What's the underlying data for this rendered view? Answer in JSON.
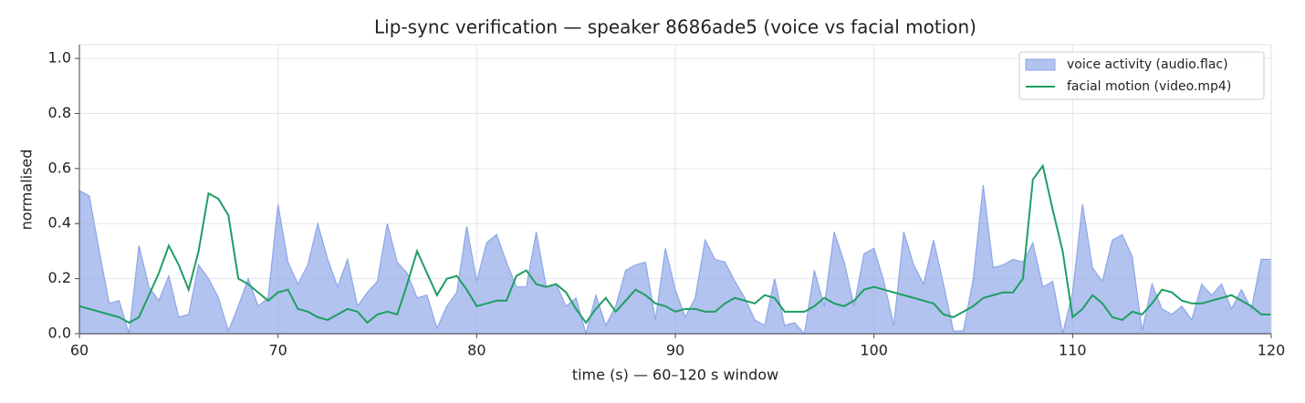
{
  "chart_data": {
    "type": "line",
    "title": "Lip-sync verification — speaker 8686ade5 (voice vs facial motion)",
    "x_label": "time (s)  — 60–120 s window",
    "y_label": "normalised",
    "xlim": [
      60,
      120
    ],
    "ylim": [
      0,
      1.05
    ],
    "xticks": [
      60,
      70,
      80,
      90,
      100,
      110,
      120
    ],
    "yticks": [
      {
        "value": 0,
        "label": "0.0"
      },
      0.2,
      0.4,
      0.6,
      0.8,
      {
        "value": 1,
        "label": "1.0"
      }
    ],
    "grid": true,
    "legend": "upper right",
    "x": [
      60,
      60.5,
      61,
      61.5,
      62,
      62.5,
      63,
      63.5,
      64,
      64.5,
      65,
      65.5,
      66,
      66.5,
      67,
      67.5,
      68,
      68.5,
      69,
      69.5,
      70,
      70.5,
      71,
      71.5,
      72,
      72.5,
      73,
      73.5,
      74,
      74.5,
      75,
      75.5,
      76,
      76.5,
      77,
      77.5,
      78,
      78.5,
      79,
      79.5,
      80,
      80.5,
      81,
      81.5,
      82,
      82.5,
      83,
      83.5,
      84,
      84.5,
      85,
      85.5,
      86,
      86.5,
      87,
      87.5,
      88,
      88.5,
      89,
      89.5,
      90,
      90.5,
      91,
      91.5,
      92,
      92.5,
      93,
      93.5,
      94,
      94.5,
      95,
      95.5,
      96,
      96.5,
      97,
      97.5,
      98,
      98.5,
      99,
      99.5,
      100,
      100.5,
      101,
      101.5,
      102,
      102.5,
      103,
      103.5,
      104,
      104.5,
      105,
      105.5,
      106,
      106.5,
      107,
      107.5,
      108,
      108.5,
      109,
      109.5,
      110,
      110.5,
      111,
      111.5,
      112,
      112.5,
      113,
      113.5,
      114,
      114.5,
      115,
      115.5,
      116,
      116.5,
      117,
      117.5,
      118,
      118.5,
      119,
      119.5,
      120
    ],
    "series": [
      {
        "name": "voice activity (audio.flac)",
        "kind": "area",
        "color": "#8ea6e8",
        "values": [
          0.52,
          0.5,
          0.3,
          0.11,
          0.12,
          0.0,
          0.32,
          0.17,
          0.12,
          0.21,
          0.06,
          0.07,
          0.25,
          0.2,
          0.13,
          0.01,
          0.1,
          0.2,
          0.1,
          0.13,
          0.47,
          0.26,
          0.18,
          0.25,
          0.4,
          0.27,
          0.17,
          0.27,
          0.1,
          0.15,
          0.19,
          0.4,
          0.26,
          0.22,
          0.13,
          0.14,
          0.02,
          0.1,
          0.15,
          0.39,
          0.19,
          0.33,
          0.36,
          0.26,
          0.17,
          0.17,
          0.37,
          0.17,
          0.18,
          0.1,
          0.13,
          0.0,
          0.14,
          0.03,
          0.1,
          0.23,
          0.25,
          0.26,
          0.05,
          0.31,
          0.16,
          0.06,
          0.13,
          0.34,
          0.27,
          0.26,
          0.19,
          0.13,
          0.05,
          0.03,
          0.2,
          0.03,
          0.04,
          0.0,
          0.23,
          0.1,
          0.37,
          0.26,
          0.1,
          0.29,
          0.31,
          0.19,
          0.03,
          0.37,
          0.25,
          0.18,
          0.34,
          0.18,
          0.01,
          0.01,
          0.2,
          0.54,
          0.24,
          0.25,
          0.27,
          0.26,
          0.33,
          0.17,
          0.19,
          0.0,
          0.15,
          0.47,
          0.24,
          0.19,
          0.34,
          0.36,
          0.28,
          0.01,
          0.18,
          0.09,
          0.07,
          0.1,
          0.05,
          0.18,
          0.14,
          0.18,
          0.09,
          0.16,
          0.09,
          0.27,
          0.27
        ]
      },
      {
        "name": "facial motion (video.mp4)",
        "kind": "line",
        "color": "#1f9e63",
        "values": [
          0.1,
          0.09,
          0.08,
          0.07,
          0.06,
          0.04,
          0.06,
          0.14,
          0.22,
          0.32,
          0.25,
          0.16,
          0.3,
          0.51,
          0.49,
          0.43,
          0.2,
          0.18,
          0.15,
          0.12,
          0.15,
          0.16,
          0.09,
          0.08,
          0.06,
          0.05,
          0.07,
          0.09,
          0.08,
          0.04,
          0.07,
          0.08,
          0.07,
          0.18,
          0.3,
          0.22,
          0.14,
          0.2,
          0.21,
          0.16,
          0.1,
          0.11,
          0.12,
          0.12,
          0.21,
          0.23,
          0.18,
          0.17,
          0.18,
          0.15,
          0.09,
          0.04,
          0.09,
          0.13,
          0.08,
          0.12,
          0.16,
          0.14,
          0.11,
          0.1,
          0.08,
          0.09,
          0.09,
          0.08,
          0.08,
          0.11,
          0.13,
          0.12,
          0.11,
          0.14,
          0.13,
          0.08,
          0.08,
          0.08,
          0.1,
          0.13,
          0.11,
          0.1,
          0.12,
          0.16,
          0.17,
          0.16,
          0.15,
          0.14,
          0.13,
          0.12,
          0.11,
          0.07,
          0.06,
          0.08,
          0.1,
          0.13,
          0.14,
          0.15,
          0.15,
          0.2,
          0.56,
          0.61,
          0.45,
          0.3,
          0.06,
          0.09,
          0.14,
          0.11,
          0.06,
          0.05,
          0.08,
          0.07,
          0.11,
          0.16,
          0.15,
          0.12,
          0.11,
          0.11,
          0.12,
          0.13,
          0.14,
          0.12,
          0.1,
          0.07,
          0.07
        ]
      }
    ]
  }
}
